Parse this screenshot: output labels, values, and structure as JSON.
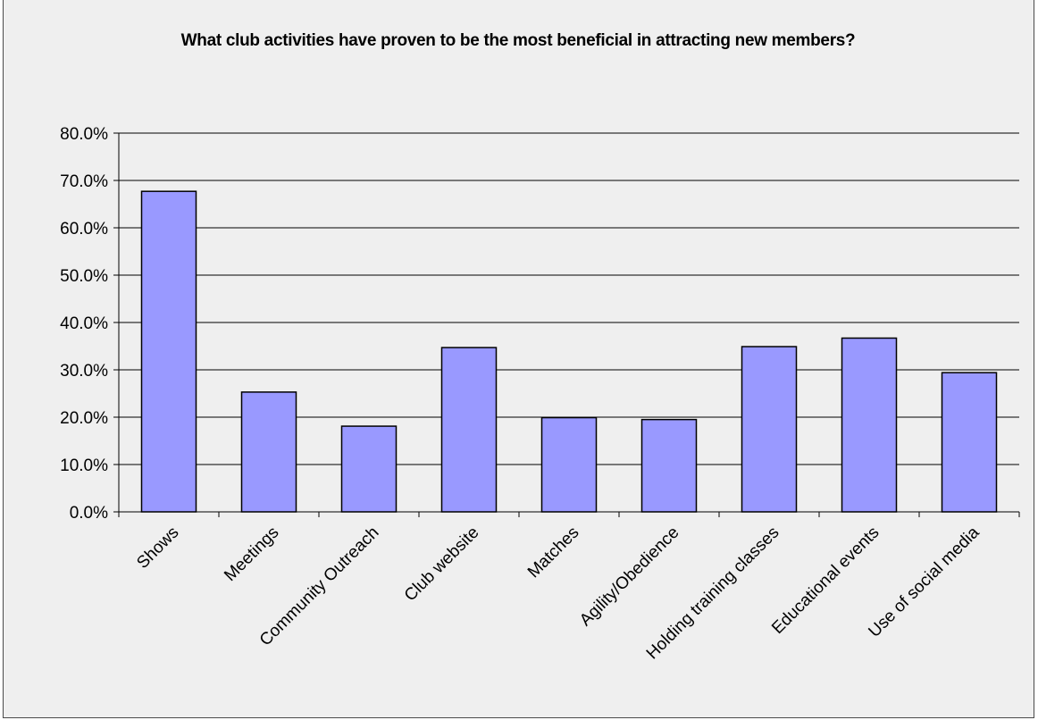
{
  "chart_data": {
    "type": "bar",
    "title": "What club activities have proven to be the most beneficial in attracting new members?",
    "categories": [
      "Shows",
      "Meetings",
      "Community Outreach",
      "Club website",
      "Matches",
      "Agility/Obedience",
      "Holding training classes",
      "Educational events",
      "Use of social media"
    ],
    "values": [
      67.7,
      25.3,
      18.1,
      34.7,
      19.9,
      19.5,
      34.9,
      36.7,
      29.4
    ],
    "ylim": [
      0,
      80
    ],
    "yticks": [
      "0.0%",
      "10.0%",
      "20.0%",
      "30.0%",
      "40.0%",
      "50.0%",
      "60.0%",
      "70.0%",
      "80.0%"
    ],
    "ytick_values": [
      0,
      10,
      20,
      30,
      40,
      50,
      60,
      70,
      80
    ],
    "xlabel": "",
    "ylabel": "",
    "grid": true,
    "bar_color": "#9999ff",
    "bar_border_color": "#000000",
    "background_color": "#efefef"
  }
}
